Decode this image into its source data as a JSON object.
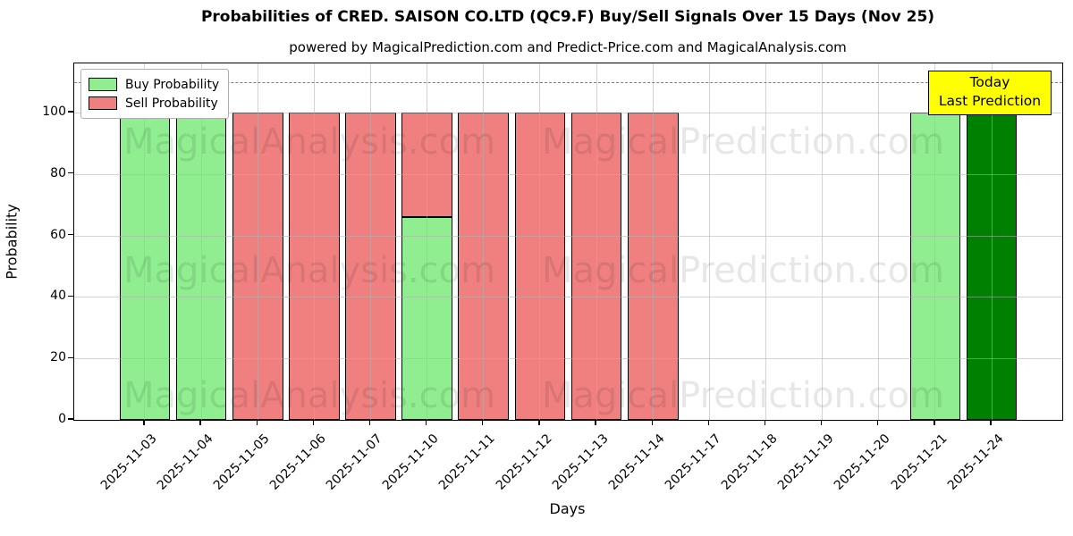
{
  "chart_data": {
    "type": "bar",
    "stacked": true,
    "title": "Probabilities of CRED. SAISON CO.LTD (QC9.F) Buy/Sell Signals Over 15 Days (Nov 25)",
    "subtitle": "powered by MagicalPrediction.com and Predict-Price.com and MagicalAnalysis.com",
    "xlabel": "Days",
    "ylabel": "Probability",
    "categories": [
      "2025-11-03",
      "2025-11-04",
      "2025-11-05",
      "2025-11-06",
      "2025-11-07",
      "2025-11-10",
      "2025-11-11",
      "2025-11-12",
      "2025-11-13",
      "2025-11-14",
      "2025-11-17",
      "2025-11-18",
      "2025-11-19",
      "2025-11-20",
      "2025-11-21",
      "2025-11-24"
    ],
    "series": [
      {
        "name": "Buy Probability",
        "color": "#90EE90",
        "values": [
          100,
          100,
          0,
          0,
          0,
          66,
          0,
          0,
          0,
          0,
          0,
          0,
          0,
          0,
          100,
          100
        ]
      },
      {
        "name": "Sell Probability",
        "color": "#F08080",
        "values": [
          0,
          0,
          100,
          100,
          100,
          34,
          100,
          100,
          100,
          100,
          0,
          0,
          0,
          0,
          0,
          0
        ]
      }
    ],
    "today_highlight": {
      "index": 15,
      "color": "#008000"
    },
    "bar_edge_color": "#000000",
    "yticks": [
      0,
      20,
      40,
      60,
      80,
      100
    ],
    "ylim": [
      0,
      116
    ],
    "threshold_line": {
      "y": 110,
      "style": "dashed",
      "color": "#7f7f7f"
    },
    "grid": true,
    "legend_position": "upper-left",
    "annotation": {
      "lines": [
        "Today",
        "Last Prediction"
      ],
      "bg_color": "#ffff00"
    },
    "watermarks": {
      "left": "MagicalAnalysis.com",
      "right": "MagicalPrediction.com"
    }
  }
}
